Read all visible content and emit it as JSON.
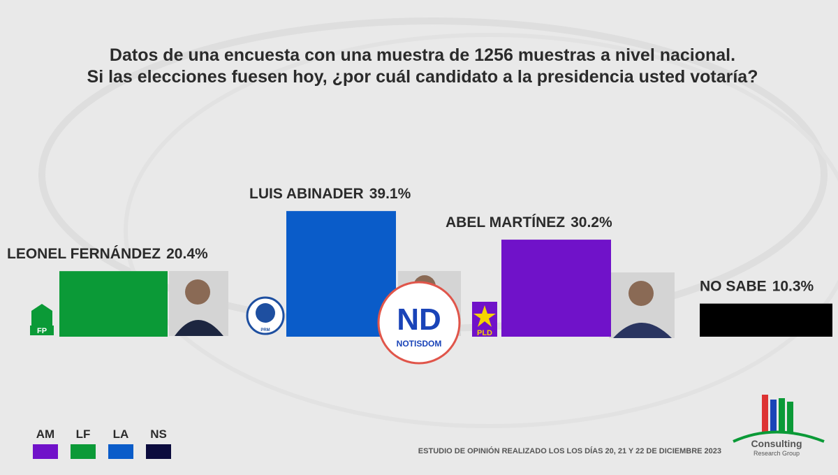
{
  "header": {
    "line1": "Datos de una encuesta con una muestra de 1256 muestras a nivel nacional.",
    "line2": "Si las elecciones fuesen hoy, ¿por cuál candidato a la presidencia usted votaría?"
  },
  "chart_data": {
    "type": "bar",
    "categories": [
      "LEONEL FERNÁNDEZ",
      "LUIS ABINADER",
      "ABEL MARTÍNEZ",
      "NO SABE"
    ],
    "values": [
      20.4,
      39.1,
      30.2,
      10.3
    ],
    "value_labels": [
      "20.4%",
      "39.1%",
      "30.2%",
      "10.3%"
    ],
    "colors": [
      "#0b9a37",
      "#0a5cc9",
      "#7012c9",
      "#000000"
    ]
  },
  "legend": [
    {
      "label": "AM",
      "color": "#7012c9"
    },
    {
      "label": "LF",
      "color": "#0b9a37"
    },
    {
      "label": "LA",
      "color": "#0a5cc9"
    },
    {
      "label": "NS",
      "color": "#0b0b3d"
    }
  ],
  "footer": "ESTUDIO DE OPINIÓN REALIZADO LOS LOS DÍAS 20, 21 Y 22 DE DICIEMBRE 2023",
  "logos": {
    "fp": "FP",
    "prm": "PRM",
    "pld": "PLD",
    "watermark_mark": "ND",
    "watermark": "NOTISDOM",
    "consulting": "Consulting",
    "research": "Research Group"
  }
}
